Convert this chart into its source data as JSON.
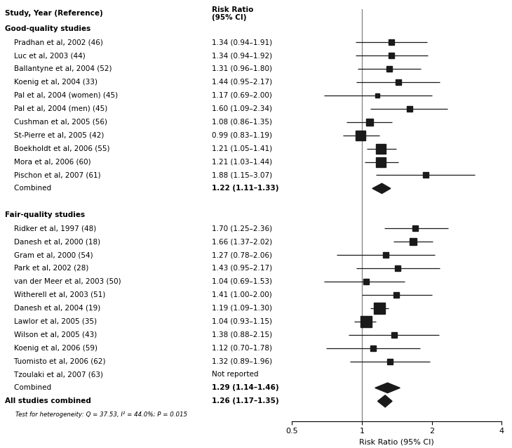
{
  "good_studies": [
    {
      "label": "Pradhan et al, 2002 (46)",
      "rr": 1.34,
      "ci_lo": 0.94,
      "ci_hi": 1.91,
      "weight": 2.0
    },
    {
      "label": "Luc et al, 2003 (44)",
      "rr": 1.34,
      "ci_lo": 0.94,
      "ci_hi": 1.92,
      "weight": 2.0
    },
    {
      "label": "Ballantyne et al, 2004 (52)",
      "rr": 1.31,
      "ci_lo": 0.96,
      "ci_hi": 1.8,
      "weight": 2.0
    },
    {
      "label": "Koenig et al, 2004 (33)",
      "rr": 1.44,
      "ci_lo": 0.95,
      "ci_hi": 2.17,
      "weight": 2.0
    },
    {
      "label": "Pal et al, 2004 (women) (45)",
      "rr": 1.17,
      "ci_lo": 0.69,
      "ci_hi": 2.0,
      "weight": 1.0
    },
    {
      "label": "Pal et al, 2004 (men) (45)",
      "rr": 1.6,
      "ci_lo": 1.09,
      "ci_hi": 2.34,
      "weight": 2.0
    },
    {
      "label": "Cushman et al, 2005 (56)",
      "rr": 1.08,
      "ci_lo": 0.86,
      "ci_hi": 1.35,
      "weight": 3.0
    },
    {
      "label": "St-Pierre et al, 2005 (42)",
      "rr": 0.99,
      "ci_lo": 0.83,
      "ci_hi": 1.19,
      "weight": 4.5
    },
    {
      "label": "Boekholdt et al, 2006 (55)",
      "rr": 1.21,
      "ci_lo": 1.05,
      "ci_hi": 1.41,
      "weight": 4.5
    },
    {
      "label": "Mora et al, 2006 (60)",
      "rr": 1.21,
      "ci_lo": 1.03,
      "ci_hi": 1.44,
      "weight": 4.5
    },
    {
      "label": "Pischon et al, 2007 (61)",
      "rr": 1.88,
      "ci_lo": 1.15,
      "ci_hi": 3.07,
      "weight": 1.5
    },
    {
      "label": "Combined",
      "rr": 1.22,
      "ci_lo": 1.11,
      "ci_hi": 1.33,
      "weight": 0,
      "diamond": true
    }
  ],
  "fair_studies": [
    {
      "label": "Ridker et al, 1997 (48)",
      "rr": 1.7,
      "ci_lo": 1.25,
      "ci_hi": 2.36,
      "weight": 2.0
    },
    {
      "label": "Danesh et al, 2000 (18)",
      "rr": 1.66,
      "ci_lo": 1.37,
      "ci_hi": 2.02,
      "weight": 2.5
    },
    {
      "label": "Gram et al, 2000 (54)",
      "rr": 1.27,
      "ci_lo": 0.78,
      "ci_hi": 2.06,
      "weight": 1.5
    },
    {
      "label": "Park et al, 2002 (28)",
      "rr": 1.43,
      "ci_lo": 0.95,
      "ci_hi": 2.17,
      "weight": 2.0
    },
    {
      "label": "van der Meer et al, 2003 (50)",
      "rr": 1.04,
      "ci_lo": 0.69,
      "ci_hi": 1.53,
      "weight": 1.5
    },
    {
      "label": "Witherell et al, 2003 (51)",
      "rr": 1.41,
      "ci_lo": 1.0,
      "ci_hi": 2.0,
      "weight": 2.0
    },
    {
      "label": "Danesh et al, 2004 (19)",
      "rr": 1.19,
      "ci_lo": 1.09,
      "ci_hi": 1.3,
      "weight": 6.0
    },
    {
      "label": "Lawlor et al, 2005 (35)",
      "rr": 1.04,
      "ci_lo": 0.93,
      "ci_hi": 1.15,
      "weight": 6.0
    },
    {
      "label": "Wilson et al, 2005 (43)",
      "rr": 1.38,
      "ci_lo": 0.88,
      "ci_hi": 2.15,
      "weight": 2.0
    },
    {
      "label": "Koenig et al, 2006 (59)",
      "rr": 1.12,
      "ci_lo": 0.7,
      "ci_hi": 1.78,
      "weight": 1.5
    },
    {
      "label": "Tuomisto et al, 2006 (62)",
      "rr": 1.32,
      "ci_lo": 0.89,
      "ci_hi": 1.96,
      "weight": 1.5
    },
    {
      "label": "Tzoulaki et al, 2007 (63)",
      "rr": null,
      "ci_lo": null,
      "ci_hi": null,
      "weight": 0,
      "not_reported": true
    },
    {
      "label": "Combined",
      "rr": 1.29,
      "ci_lo": 1.14,
      "ci_hi": 1.46,
      "weight": 0,
      "diamond": true
    }
  ],
  "all_combined": {
    "label": "All studies combined",
    "rr": 1.26,
    "ci_lo": 1.17,
    "ci_hi": 1.35,
    "weight": 0,
    "diamond": true
  },
  "footer": "Test for heterogeneity: Q = 37.53, I² = 44.0%; P = 0.015",
  "xlabel": "Risk Ratio (95% CI)",
  "box_color": "#1a1a1a",
  "ci_color": "#1a1a1a",
  "vline_color": "#808080"
}
